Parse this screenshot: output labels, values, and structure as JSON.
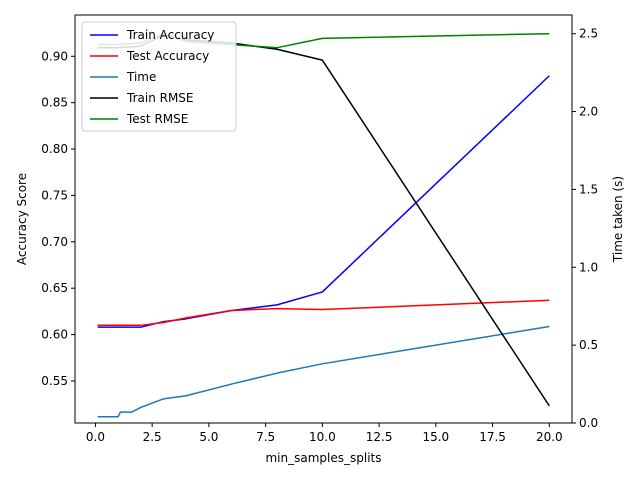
{
  "chart_data": {
    "type": "line",
    "title": "",
    "xlabel": "min_samples_splits",
    "ylabel_left": "Accuracy Score",
    "ylabel_right": "Time taken (s)",
    "xlim": [
      -0.9,
      21.0
    ],
    "ylim_left": [
      0.5047,
      0.9445
    ],
    "ylim_right": [
      0.0,
      2.62
    ],
    "xticks": [
      0.0,
      2.5,
      5.0,
      7.5,
      10.0,
      12.5,
      15.0,
      17.5,
      20.0
    ],
    "xtick_labels": [
      "0.0",
      "2.5",
      "5.0",
      "7.5",
      "10.0",
      "12.5",
      "15.0",
      "17.5",
      "20.0"
    ],
    "yticks_left": [
      0.55,
      0.6,
      0.65,
      0.7,
      0.75,
      0.8,
      0.85,
      0.9
    ],
    "ytick_labels_left": [
      "0.55",
      "0.60",
      "0.65",
      "0.70",
      "0.75",
      "0.80",
      "0.85",
      "0.90"
    ],
    "yticks_right": [
      0.0,
      0.5,
      1.0,
      1.5,
      2.0,
      2.5
    ],
    "ytick_labels_right": [
      "0.0",
      "0.5",
      "1.0",
      "1.5",
      "2.0",
      "2.5"
    ],
    "legend_position": "top-left",
    "series": [
      {
        "name": "Train Accuracy",
        "color": "#0000ff",
        "axis": "left",
        "x": [
          0.1,
          0.5,
          1.0,
          2.0,
          3.0,
          4.0,
          6.0,
          8.0,
          10.0,
          20.0
        ],
        "y": [
          0.608,
          0.608,
          0.608,
          0.608,
          0.614,
          0.617,
          0.626,
          0.632,
          0.646,
          0.879
        ]
      },
      {
        "name": "Test Accuracy",
        "color": "#ff0000",
        "axis": "left",
        "x": [
          0.1,
          0.5,
          1.0,
          2.0,
          3.0,
          4.0,
          6.0,
          8.0,
          10.0,
          20.0
        ],
        "y": [
          0.61,
          0.61,
          0.61,
          0.61,
          0.613,
          0.618,
          0.626,
          0.628,
          0.627,
          0.637
        ]
      },
      {
        "name": "Time",
        "color": "#1f77b4",
        "axis": "right",
        "x": [
          0.1,
          0.5,
          1.0,
          1.1,
          1.6,
          2.0,
          3.0,
          4.0,
          6.0,
          8.0,
          10.0,
          20.0
        ],
        "y": [
          0.04,
          0.04,
          0.04,
          0.07,
          0.07,
          0.1,
          0.155,
          0.175,
          0.25,
          0.32,
          0.38,
          0.62
        ]
      },
      {
        "name": "Train RMSE",
        "color": "#000000",
        "axis": "right",
        "x": [
          0.1,
          0.5,
          1.0,
          2.0,
          3.0,
          4.0,
          6.0,
          8.0,
          10.0,
          20.0
        ],
        "y": [
          2.41,
          2.41,
          2.41,
          2.42,
          2.49,
          2.46,
          2.44,
          2.4,
          2.33,
          0.11
        ]
      },
      {
        "name": "Test RMSE",
        "color": "#008000",
        "axis": "right",
        "x": [
          0.1,
          0.5,
          1.0,
          2.0,
          3.0,
          4.0,
          6.0,
          8.0,
          10.0,
          20.0
        ],
        "y": [
          2.43,
          2.43,
          2.43,
          2.44,
          2.5,
          2.45,
          2.43,
          2.41,
          2.47,
          2.5
        ]
      }
    ]
  }
}
